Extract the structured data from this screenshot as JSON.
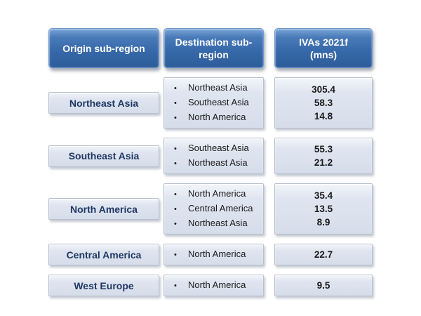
{
  "chart_data": {
    "type": "table",
    "title": "",
    "columns": [
      "Origin sub-region",
      "Destination sub-region",
      "IVAs 2021f (mns)"
    ],
    "rows": [
      {
        "origin": "Northeast Asia",
        "destinations": [
          "Northeast Asia",
          "Southeast Asia",
          "North America"
        ],
        "ivas_2021f_mns": [
          "305.4",
          "58.3",
          "14.8"
        ]
      },
      {
        "origin": "Southeast Asia",
        "destinations": [
          "Southeast Asia",
          "Northeast Asia"
        ],
        "ivas_2021f_mns": [
          "55.3",
          "21.2"
        ]
      },
      {
        "origin": "North America",
        "destinations": [
          "North America",
          "Central America",
          "Northeast Asia"
        ],
        "ivas_2021f_mns": [
          "35.4",
          "13.5",
          "8.9"
        ]
      },
      {
        "origin": "Central America",
        "destinations": [
          "North America"
        ],
        "ivas_2021f_mns": [
          "22.7"
        ]
      },
      {
        "origin": "West Europe",
        "destinations": [
          "North America"
        ],
        "ivas_2021f_mns": [
          "9.5"
        ]
      }
    ]
  },
  "colors": {
    "header_fill_top": "#7aa5d8",
    "header_fill_bottom": "#2d5c99",
    "header_text": "#ffffff",
    "box_fill": "#dfe5f0",
    "box_border": "#b9bfce",
    "origin_text": "#1f3864",
    "body_text": "#1a1a1a",
    "background": "#ffffff"
  }
}
